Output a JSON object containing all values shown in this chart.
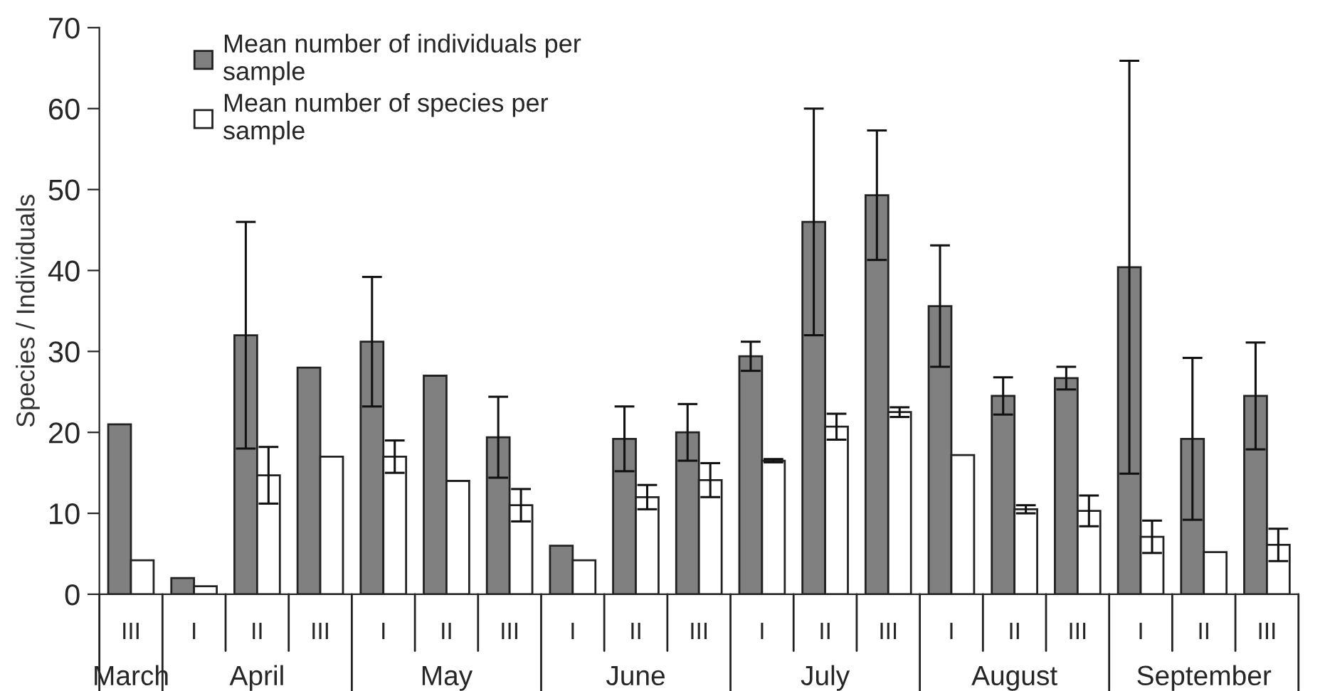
{
  "chart_data": {
    "type": "bar",
    "ylabel": "Species / Individuals",
    "categories": [
      "III",
      "I",
      "II",
      "III",
      "I",
      "II",
      "III",
      "I",
      "II",
      "III",
      "I",
      "II",
      "III",
      "I",
      "II",
      "III",
      "I",
      "II",
      "III"
    ],
    "series": [
      {
        "name": "Mean number of individuals per sample",
        "color": "#808080",
        "values": [
          21,
          2,
          32,
          28,
          31.2,
          27,
          19.4,
          6,
          19.2,
          20,
          29.4,
          46,
          49.3,
          35.6,
          24.5,
          26.7,
          40.4,
          19.2,
          24.5
        ],
        "errors": [
          null,
          null,
          14,
          null,
          8,
          null,
          5,
          null,
          4,
          3.5,
          1.8,
          14,
          8,
          7.5,
          2.3,
          1.4,
          25.5,
          10,
          6.6
        ]
      },
      {
        "name": "Mean number of species per sample",
        "color": "#ffffff",
        "values": [
          4.2,
          1,
          14.7,
          17,
          17,
          14,
          11,
          4.2,
          12,
          14.1,
          16.5,
          20.7,
          22.5,
          17.2,
          10.5,
          10.3,
          7.1,
          5.2,
          6.1
        ],
        "errors": [
          null,
          null,
          3.5,
          null,
          2,
          null,
          2,
          null,
          1.5,
          2.1,
          0.2,
          1.6,
          0.6,
          null,
          0.5,
          1.9,
          2,
          null,
          2
        ]
      }
    ],
    "annotations": [
      "March",
      "April",
      "May",
      "June",
      "July",
      "August",
      "September"
    ],
    "ylim": [
      0,
      70
    ],
    "yticks": [
      0,
      10,
      20,
      30,
      40,
      50,
      60,
      70
    ],
    "grid": false,
    "legend": "top left"
  }
}
